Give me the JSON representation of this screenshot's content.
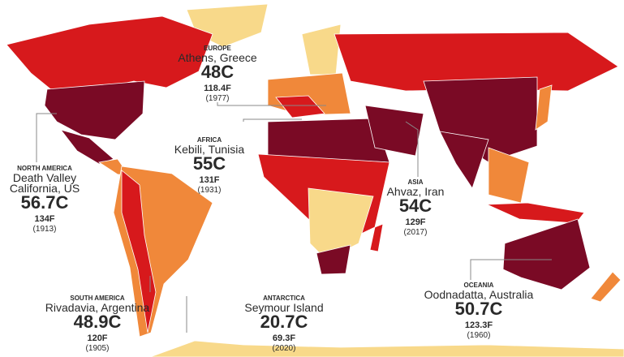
{
  "callouts": [
    {
      "region": "EUROPE",
      "location": "Athens, Greece",
      "celsius": "48C",
      "fahrenheit": "118.4F",
      "year": "(1977)"
    },
    {
      "region": "AFRICA",
      "location": "Kebili, Tunisia",
      "celsius": "55C",
      "fahrenheit": "131F",
      "year": "(1931)"
    },
    {
      "region": "NORTH AMERICA",
      "location": "Death Valley\nCalifornia, US",
      "celsius": "56.7C",
      "fahrenheit": "134F",
      "year": "(1913)"
    },
    {
      "region": "ASIA",
      "location": "Ahvaz, Iran",
      "celsius": "54C",
      "fahrenheit": "129F",
      "year": "(2017)"
    },
    {
      "region": "SOUTH AMERICA",
      "location": "Rivadavia, Argentina",
      "celsius": "48.9C",
      "fahrenheit": "120F",
      "year": "(1905)"
    },
    {
      "region": "ANTARCTICA",
      "location": "Seymour Island",
      "celsius": "20.7C",
      "fahrenheit": "69.3F",
      "year": "(2020)"
    },
    {
      "region": "OCEANIA",
      "location": "Oodnadatta, Australia",
      "celsius": "50.7C",
      "fahrenheit": "123.3F",
      "year": "(1960)"
    }
  ]
}
